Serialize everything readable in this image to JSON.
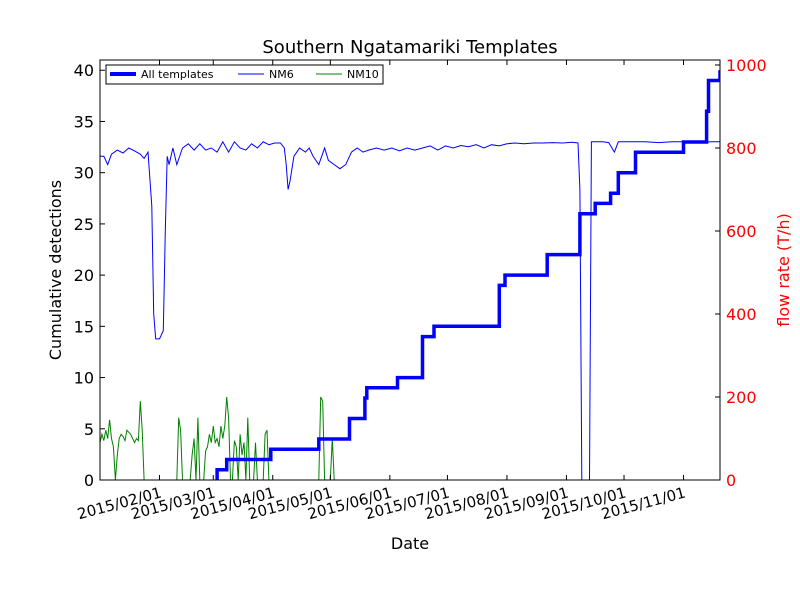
{
  "chart_data": {
    "type": "line",
    "title": "Southern Ngatamariki Templates",
    "xlabel": "Date",
    "ylabel": "Cumulative detections",
    "y2label": "flow rate (T/h)",
    "xlim": [
      "2015-01-01",
      "2015-11-20"
    ],
    "ylim": [
      0,
      41
    ],
    "y2lim": [
      0,
      1012
    ],
    "xticks": [
      "2015/02/01",
      "2015/03/01",
      "2015/04/01",
      "2015/05/01",
      "2015/06/01",
      "2015/07/01",
      "2015/08/01",
      "2015/09/01",
      "2015/10/01",
      "2015/11/01"
    ],
    "yticks": [
      0,
      5,
      10,
      15,
      20,
      25,
      30,
      35,
      40
    ],
    "y2ticks": [
      0,
      200,
      400,
      600,
      800,
      1000
    ],
    "grid": false,
    "legend": {
      "position": "top-left",
      "entries": [
        "All templates",
        "NM6",
        "NM10"
      ]
    },
    "colors": {
      "cumulative": "#0000ff",
      "nm6": "#0000ff",
      "nm10": "#008000",
      "secondary_axis": "#ff0000"
    },
    "series": [
      {
        "name": "All templates",
        "axis": "left",
        "style": "step",
        "points": [
          [
            "2015-03-03",
            0
          ],
          [
            "2015-03-03",
            1
          ],
          [
            "2015-03-08",
            1
          ],
          [
            "2015-03-08",
            2
          ],
          [
            "2015-03-31",
            2
          ],
          [
            "2015-03-31",
            3
          ],
          [
            "2015-04-25",
            3
          ],
          [
            "2015-04-25",
            4
          ],
          [
            "2015-05-11",
            4
          ],
          [
            "2015-05-11",
            6
          ],
          [
            "2015-05-19",
            6
          ],
          [
            "2015-05-19",
            8
          ],
          [
            "2015-05-20",
            8
          ],
          [
            "2015-05-20",
            9
          ],
          [
            "2015-06-05",
            9
          ],
          [
            "2015-06-05",
            10
          ],
          [
            "2015-06-18",
            10
          ],
          [
            "2015-06-18",
            14
          ],
          [
            "2015-06-24",
            14
          ],
          [
            "2015-06-24",
            15
          ],
          [
            "2015-07-28",
            15
          ],
          [
            "2015-07-28",
            19
          ],
          [
            "2015-07-31",
            19
          ],
          [
            "2015-07-31",
            20
          ],
          [
            "2015-08-22",
            20
          ],
          [
            "2015-08-22",
            22
          ],
          [
            "2015-09-08",
            22
          ],
          [
            "2015-09-08",
            26
          ],
          [
            "2015-09-16",
            26
          ],
          [
            "2015-09-16",
            27
          ],
          [
            "2015-09-24",
            27
          ],
          [
            "2015-09-24",
            28
          ],
          [
            "2015-09-28",
            28
          ],
          [
            "2015-09-28",
            30
          ],
          [
            "2015-10-07",
            30
          ],
          [
            "2015-10-07",
            32
          ],
          [
            "2015-11-01",
            32
          ],
          [
            "2015-11-01",
            33
          ],
          [
            "2015-11-13",
            33
          ],
          [
            "2015-11-13",
            36
          ],
          [
            "2015-11-14",
            36
          ],
          [
            "2015-11-14",
            39
          ],
          [
            "2015-11-20",
            39
          ],
          [
            "2015-11-20",
            40
          ]
        ]
      },
      {
        "name": "NM6",
        "axis": "right",
        "style": "line",
        "points": [
          [
            "2015-01-01",
            780
          ],
          [
            "2015-01-03",
            780
          ],
          [
            "2015-01-05",
            760
          ],
          [
            "2015-01-07",
            785
          ],
          [
            "2015-01-10",
            795
          ],
          [
            "2015-01-13",
            788
          ],
          [
            "2015-01-16",
            800
          ],
          [
            "2015-01-19",
            793
          ],
          [
            "2015-01-22",
            785
          ],
          [
            "2015-01-24",
            775
          ],
          [
            "2015-01-26",
            790
          ],
          [
            "2015-01-28",
            660
          ],
          [
            "2015-01-29",
            400
          ],
          [
            "2015-01-30",
            340
          ],
          [
            "2015-02-01",
            340
          ],
          [
            "2015-02-03",
            360
          ],
          [
            "2015-02-04",
            600
          ],
          [
            "2015-02-05",
            780
          ],
          [
            "2015-02-06",
            760
          ],
          [
            "2015-02-08",
            800
          ],
          [
            "2015-02-10",
            760
          ],
          [
            "2015-02-13",
            800
          ],
          [
            "2015-02-16",
            810
          ],
          [
            "2015-02-19",
            795
          ],
          [
            "2015-02-22",
            810
          ],
          [
            "2015-02-25",
            795
          ],
          [
            "2015-02-28",
            800
          ],
          [
            "2015-03-03",
            790
          ],
          [
            "2015-03-06",
            815
          ],
          [
            "2015-03-09",
            790
          ],
          [
            "2015-03-12",
            815
          ],
          [
            "2015-03-15",
            800
          ],
          [
            "2015-03-18",
            795
          ],
          [
            "2015-03-21",
            810
          ],
          [
            "2015-03-24",
            800
          ],
          [
            "2015-03-27",
            815
          ],
          [
            "2015-03-30",
            808
          ],
          [
            "2015-04-02",
            812
          ],
          [
            "2015-04-05",
            812
          ],
          [
            "2015-04-07",
            800
          ],
          [
            "2015-04-08",
            760
          ],
          [
            "2015-04-09",
            700
          ],
          [
            "2015-04-10",
            720
          ],
          [
            "2015-04-12",
            780
          ],
          [
            "2015-04-15",
            800
          ],
          [
            "2015-04-18",
            790
          ],
          [
            "2015-04-20",
            800
          ],
          [
            "2015-04-22",
            780
          ],
          [
            "2015-04-25",
            760
          ],
          [
            "2015-04-28",
            800
          ],
          [
            "2015-04-30",
            770
          ],
          [
            "2015-05-03",
            760
          ],
          [
            "2015-05-06",
            750
          ],
          [
            "2015-05-09",
            760
          ],
          [
            "2015-05-12",
            790
          ],
          [
            "2015-05-15",
            800
          ],
          [
            "2015-05-18",
            790
          ],
          [
            "2015-05-21",
            795
          ],
          [
            "2015-05-25",
            800
          ],
          [
            "2015-05-29",
            795
          ],
          [
            "2015-06-02",
            800
          ],
          [
            "2015-06-06",
            793
          ],
          [
            "2015-06-10",
            800
          ],
          [
            "2015-06-14",
            795
          ],
          [
            "2015-06-18",
            800
          ],
          [
            "2015-06-22",
            805
          ],
          [
            "2015-06-26",
            795
          ],
          [
            "2015-06-30",
            805
          ],
          [
            "2015-07-04",
            800
          ],
          [
            "2015-07-08",
            806
          ],
          [
            "2015-07-12",
            803
          ],
          [
            "2015-07-16",
            808
          ],
          [
            "2015-07-20",
            800
          ],
          [
            "2015-07-24",
            808
          ],
          [
            "2015-07-28",
            805
          ],
          [
            "2015-08-01",
            810
          ],
          [
            "2015-08-05",
            812
          ],
          [
            "2015-08-10",
            810
          ],
          [
            "2015-08-15",
            812
          ],
          [
            "2015-08-20",
            812
          ],
          [
            "2015-08-25",
            813
          ],
          [
            "2015-08-30",
            812
          ],
          [
            "2015-09-04",
            814
          ],
          [
            "2015-09-07",
            812
          ],
          [
            "2015-09-08",
            700
          ],
          [
            "2015-09-09",
            0
          ],
          [
            "2015-09-13",
            0
          ],
          [
            "2015-09-14",
            815
          ],
          [
            "2015-09-20",
            815
          ],
          [
            "2015-09-23",
            813
          ],
          [
            "2015-09-26",
            790
          ],
          [
            "2015-09-28",
            815
          ],
          [
            "2015-10-05",
            815
          ],
          [
            "2015-10-12",
            815
          ],
          [
            "2015-10-19",
            813
          ],
          [
            "2015-10-26",
            815
          ],
          [
            "2015-11-02",
            815
          ],
          [
            "2015-11-09",
            814
          ],
          [
            "2015-11-16",
            815
          ],
          [
            "2015-11-20",
            815
          ]
        ]
      },
      {
        "name": "NM10",
        "axis": "right",
        "style": "line",
        "points": [
          [
            "2015-01-01",
            90
          ],
          [
            "2015-01-02",
            110
          ],
          [
            "2015-01-03",
            95
          ],
          [
            "2015-01-04",
            120
          ],
          [
            "2015-01-05",
            100
          ],
          [
            "2015-01-06",
            145
          ],
          [
            "2015-01-07",
            100
          ],
          [
            "2015-01-08",
            80
          ],
          [
            "2015-01-09",
            0
          ],
          [
            "2015-01-10",
            60
          ],
          [
            "2015-01-11",
            100
          ],
          [
            "2015-01-12",
            110
          ],
          [
            "2015-01-13",
            105
          ],
          [
            "2015-01-14",
            95
          ],
          [
            "2015-01-15",
            120
          ],
          [
            "2015-01-16",
            115
          ],
          [
            "2015-01-17",
            110
          ],
          [
            "2015-01-18",
            100
          ],
          [
            "2015-01-19",
            90
          ],
          [
            "2015-01-20",
            100
          ],
          [
            "2015-01-21",
            95
          ],
          [
            "2015-01-22",
            190
          ],
          [
            "2015-01-23",
            120
          ],
          [
            "2015-01-24",
            0
          ],
          [
            "2015-01-27",
            0
          ],
          [
            "2015-01-28",
            0
          ],
          [
            "2015-02-10",
            0
          ],
          [
            "2015-02-11",
            150
          ],
          [
            "2015-02-12",
            120
          ],
          [
            "2015-02-13",
            0
          ],
          [
            "2015-02-17",
            0
          ],
          [
            "2015-02-18",
            60
          ],
          [
            "2015-02-19",
            100
          ],
          [
            "2015-02-20",
            0
          ],
          [
            "2015-02-21",
            150
          ],
          [
            "2015-02-22",
            0
          ],
          [
            "2015-02-24",
            0
          ],
          [
            "2015-02-25",
            70
          ],
          [
            "2015-02-26",
            80
          ],
          [
            "2015-02-27",
            110
          ],
          [
            "2015-02-28",
            90
          ],
          [
            "2015-03-01",
            130
          ],
          [
            "2015-03-02",
            90
          ],
          [
            "2015-03-03",
            100
          ],
          [
            "2015-03-04",
            80
          ],
          [
            "2015-03-05",
            130
          ],
          [
            "2015-03-06",
            100
          ],
          [
            "2015-03-07",
            130
          ],
          [
            "2015-03-08",
            200
          ],
          [
            "2015-03-09",
            150
          ],
          [
            "2015-03-10",
            0
          ],
          [
            "2015-03-11",
            0
          ],
          [
            "2015-03-12",
            95
          ],
          [
            "2015-03-13",
            80
          ],
          [
            "2015-03-14",
            0
          ],
          [
            "2015-03-15",
            110
          ],
          [
            "2015-03-16",
            60
          ],
          [
            "2015-03-17",
            90
          ],
          [
            "2015-03-18",
            0
          ],
          [
            "2015-03-19",
            150
          ],
          [
            "2015-03-20",
            0
          ],
          [
            "2015-03-22",
            0
          ],
          [
            "2015-03-23",
            90
          ],
          [
            "2015-03-24",
            0
          ],
          [
            "2015-03-27",
            0
          ],
          [
            "2015-03-28",
            110
          ],
          [
            "2015-03-29",
            120
          ],
          [
            "2015-03-30",
            0
          ],
          [
            "2015-04-25",
            0
          ],
          [
            "2015-04-26",
            200
          ],
          [
            "2015-04-27",
            190
          ],
          [
            "2015-04-28",
            0
          ],
          [
            "2015-05-01",
            0
          ],
          [
            "2015-05-02",
            100
          ],
          [
            "2015-05-03",
            0
          ],
          [
            "2015-05-31",
            0
          ]
        ]
      }
    ]
  }
}
